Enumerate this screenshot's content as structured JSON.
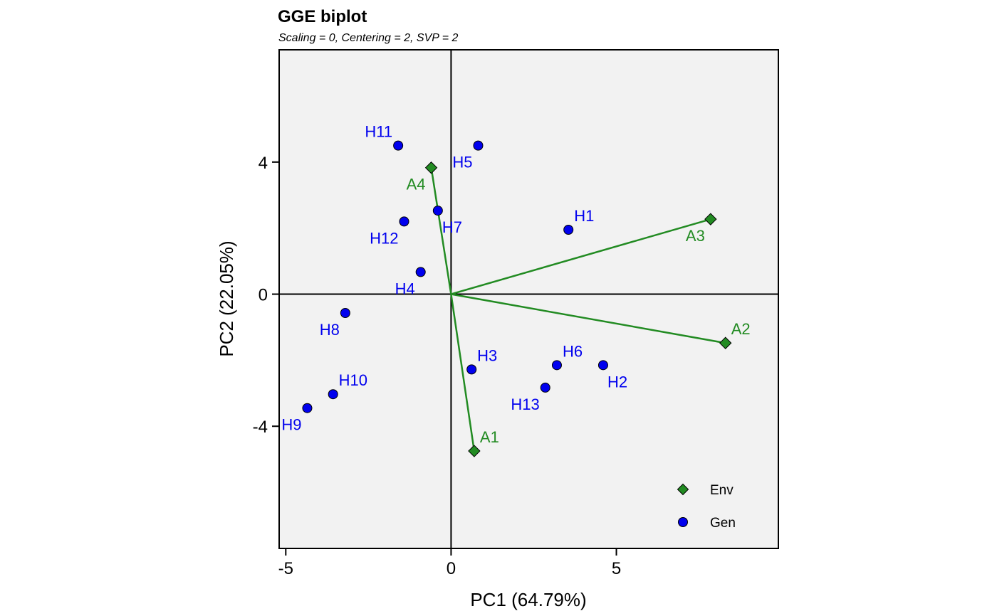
{
  "chart_data": {
    "type": "scatter",
    "title": "GGE biplot",
    "subtitle": "Scaling = 0, Centering = 2, SVP = 2",
    "xlabel": "PC1 (64.79%)",
    "ylabel": "PC2 (22.05%)",
    "xlim": [
      -5.2,
      9.9
    ],
    "ylim": [
      -7.7,
      7.4
    ],
    "xticks": [
      -5,
      0,
      5
    ],
    "yticks": [
      -4,
      0,
      4
    ],
    "colors": {
      "env": "#228B22",
      "gen": "#0000EE",
      "panel": "#F2F2F2"
    },
    "series": [
      {
        "name": "Env",
        "marker": "diamond",
        "vectors_from_origin": true,
        "points": [
          {
            "label": "A1",
            "x": 0.7,
            "y": -4.75,
            "label_pos": "upper-right"
          },
          {
            "label": "A2",
            "x": 8.3,
            "y": -1.48,
            "label_pos": "upper-right"
          },
          {
            "label": "A3",
            "x": 7.85,
            "y": 2.27,
            "label_pos": "lower-left"
          },
          {
            "label": "A4",
            "x": -0.6,
            "y": 3.83,
            "label_pos": "lower-left"
          }
        ]
      },
      {
        "name": "Gen",
        "marker": "circle",
        "points": [
          {
            "label": "H1",
            "x": 3.55,
            "y": 1.95,
            "label_pos": "upper-right"
          },
          {
            "label": "H2",
            "x": 4.6,
            "y": -2.15,
            "label_pos": "lower-right"
          },
          {
            "label": "H3",
            "x": 0.62,
            "y": -2.28,
            "label_pos": "upper-right"
          },
          {
            "label": "H4",
            "x": -0.92,
            "y": 0.67,
            "label_pos": "lower-left"
          },
          {
            "label": "H5",
            "x": 0.82,
            "y": 4.5,
            "label_pos": "lower-left"
          },
          {
            "label": "H6",
            "x": 3.2,
            "y": -2.15,
            "label_pos": "upper-right"
          },
          {
            "label": "H7",
            "x": -0.4,
            "y": 2.53,
            "label_pos": "lower-right"
          },
          {
            "label": "H8",
            "x": -3.2,
            "y": -0.57,
            "label_pos": "lower-left"
          },
          {
            "label": "H9",
            "x": -4.35,
            "y": -3.45,
            "label_pos": "lower-left"
          },
          {
            "label": "H10",
            "x": -3.57,
            "y": -3.03,
            "label_pos": "upper-right"
          },
          {
            "label": "H11",
            "x": -1.6,
            "y": 4.5,
            "label_pos": "upper-left"
          },
          {
            "label": "H12",
            "x": -1.42,
            "y": 2.2,
            "label_pos": "lower-left"
          },
          {
            "label": "H13",
            "x": 2.85,
            "y": -2.83,
            "label_pos": "lower-left"
          }
        ]
      }
    ],
    "legend": {
      "position": "bottom-right",
      "entries": [
        {
          "label": "Env",
          "marker": "diamond"
        },
        {
          "label": "Gen",
          "marker": "circle"
        }
      ]
    }
  }
}
